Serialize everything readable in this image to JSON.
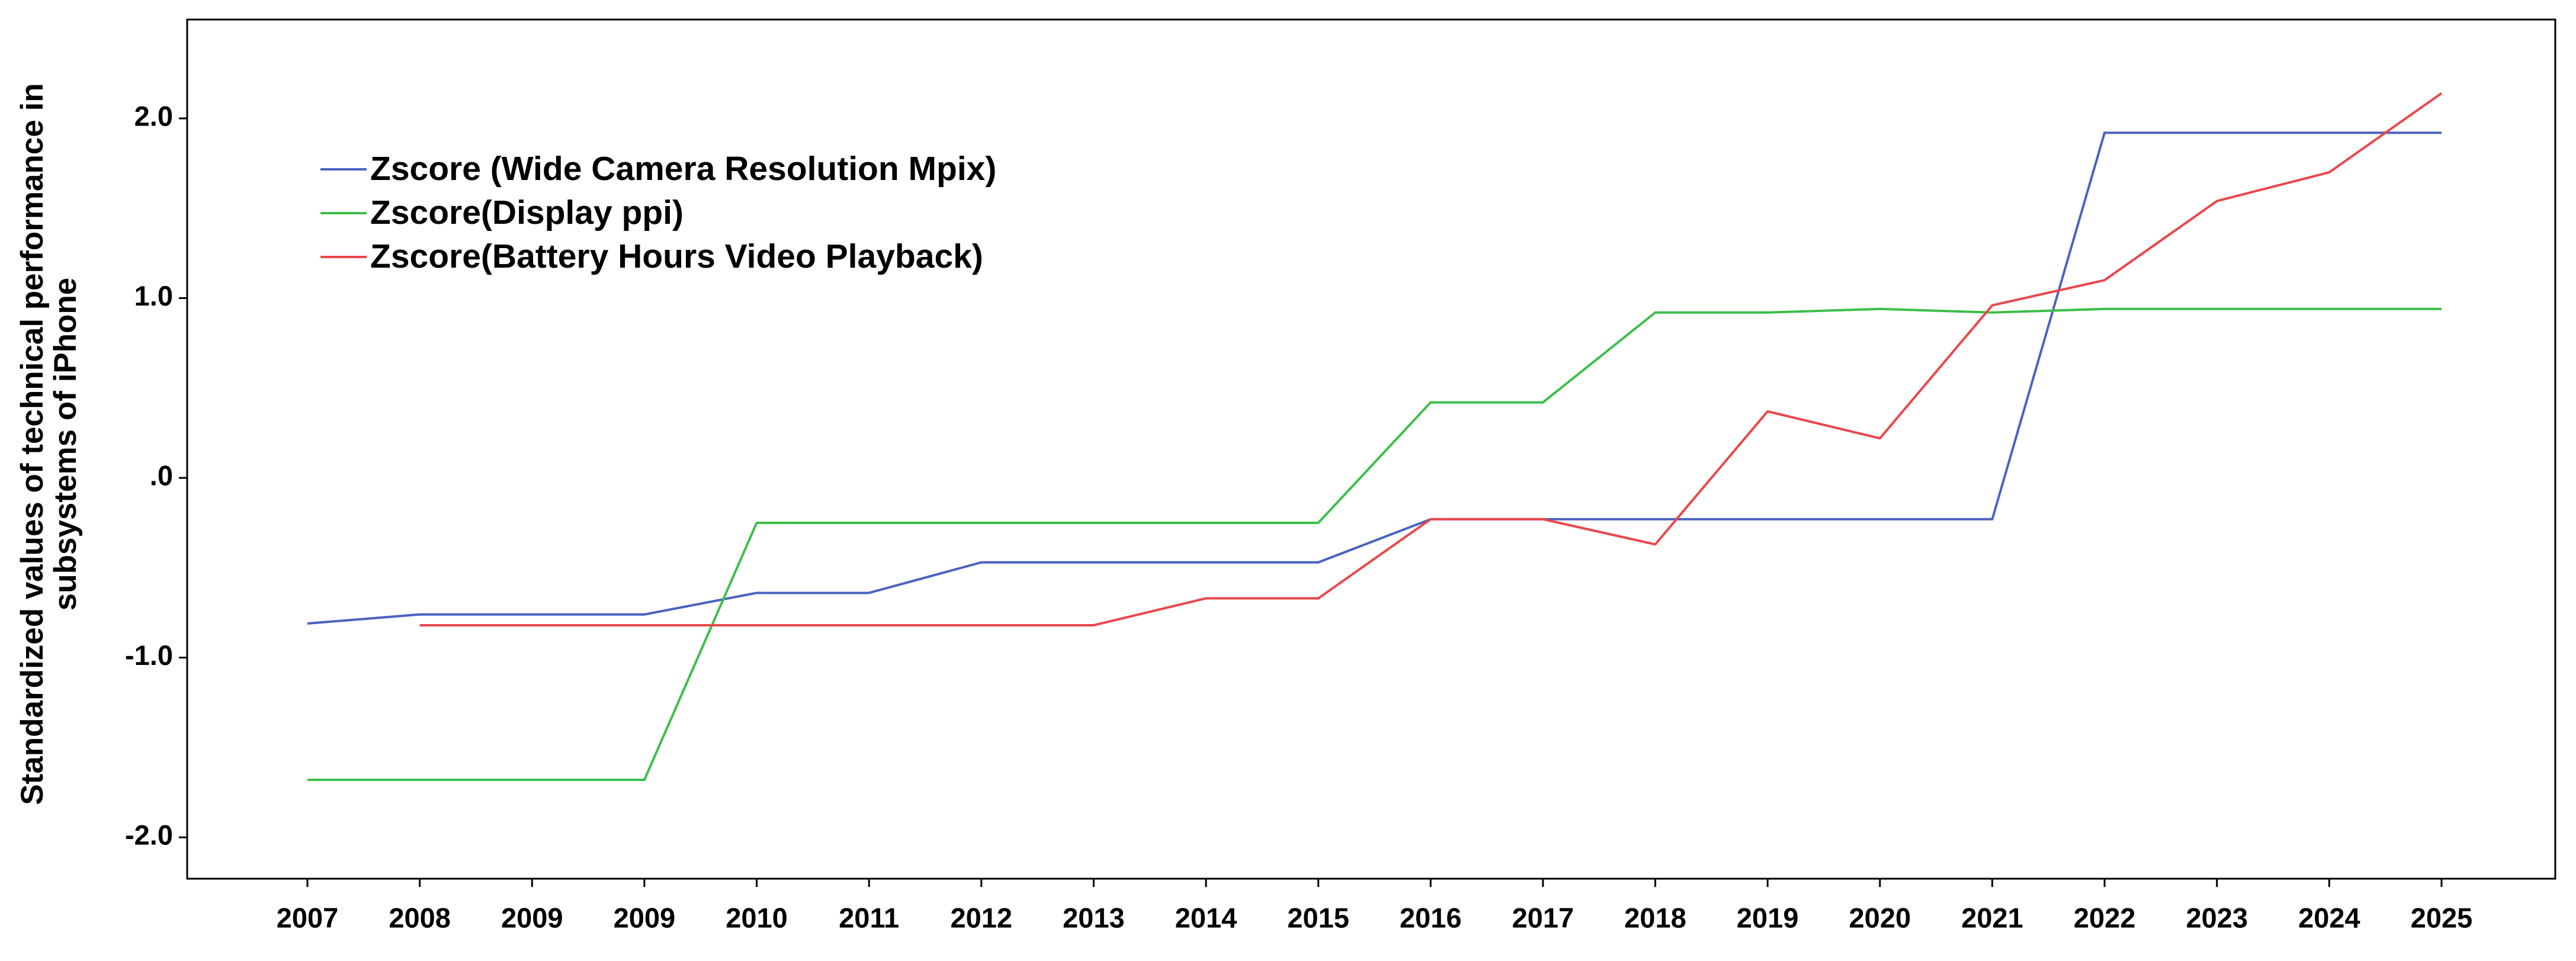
{
  "chart_data": {
    "type": "line",
    "ylabel": "Standardized values of technical performance in subsystems of iPhone",
    "categories": [
      "2007",
      "2008",
      "2009",
      "2009",
      "2010",
      "2011",
      "2012",
      "2013",
      "2014",
      "2015",
      "2016",
      "2017",
      "2018",
      "2019",
      "2020",
      "2021",
      "2022",
      "2023",
      "2024",
      "2025"
    ],
    "series": [
      {
        "name": "Zscore (Wide Camera Resolution Mpix)",
        "color": "#4a63c0",
        "values": [
          -0.81,
          -0.76,
          -0.76,
          -0.76,
          -0.64,
          -0.64,
          -0.47,
          -0.47,
          -0.47,
          -0.47,
          -0.23,
          -0.23,
          -0.23,
          -0.23,
          -0.23,
          -0.23,
          1.92,
          1.92,
          1.92,
          1.92
        ]
      },
      {
        "name": "Zscore(Display ppi)",
        "color": "#3cbf4a",
        "values": [
          -1.68,
          -1.68,
          -1.68,
          -1.68,
          -0.25,
          -0.25,
          -0.25,
          -0.25,
          -0.25,
          -0.25,
          0.42,
          0.42,
          0.92,
          0.92,
          0.94,
          0.92,
          0.94,
          0.94,
          0.94,
          0.94
        ]
      },
      {
        "name": "Zscore(Battery Hours Video Playback)",
        "color": "#e8474b",
        "values": [
          null,
          -0.82,
          -0.82,
          -0.82,
          -0.82,
          -0.82,
          -0.82,
          -0.82,
          -0.67,
          -0.67,
          -0.23,
          -0.23,
          -0.37,
          0.37,
          0.22,
          0.96,
          1.1,
          1.54,
          1.7,
          2.14
        ]
      }
    ],
    "ylim": [
      -2.23,
      2.55
    ],
    "yticks": [
      {
        "value": -2,
        "label": "-2.0"
      },
      {
        "value": -1,
        "label": "-1.0"
      },
      {
        "value": 0,
        "label": ".0"
      },
      {
        "value": 1,
        "label": "1.0"
      },
      {
        "value": 2,
        "label": "2.0"
      }
    ],
    "grid": false,
    "legend": "upper left"
  }
}
